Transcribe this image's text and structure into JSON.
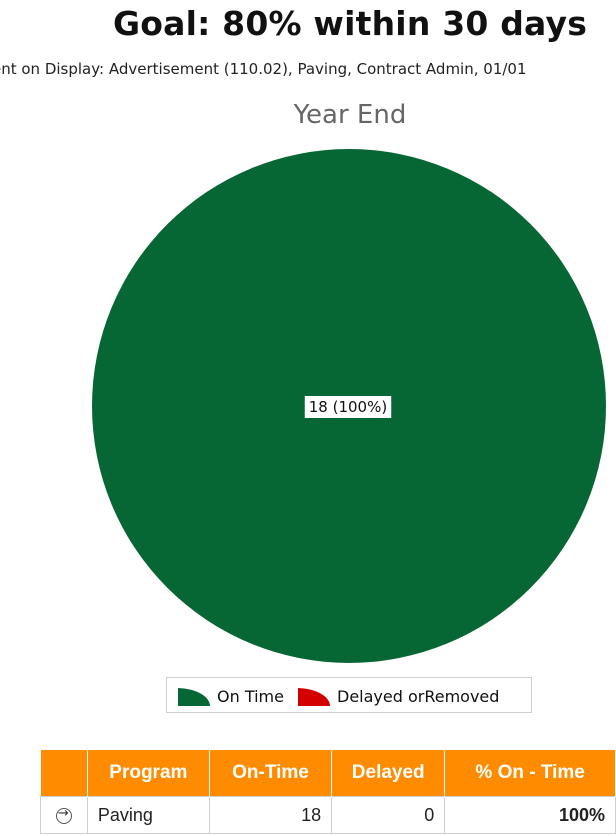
{
  "title": "Goal: 80% within 30 days",
  "subtitle": "ent on Display: Advertisement (110.02), Paving, Contract Admin, 01/01",
  "chart_data": {
    "type": "pie",
    "title": "Year End",
    "slices": [
      {
        "name": "On Time",
        "value": 18,
        "label": "18 (100%)",
        "color": "#076734"
      },
      {
        "name": "Delayed orRemoved",
        "value": 0,
        "label": "",
        "color": "#d40000"
      }
    ],
    "legend_placement": "bottom"
  },
  "legend": {
    "on_time": "On Time",
    "delayed": "Delayed orRemoved"
  },
  "table": {
    "headers": [
      "Program",
      "On-Time",
      "Delayed",
      "% On - Time"
    ],
    "rows": [
      {
        "program": "Paving",
        "on_time": "18",
        "delayed": "0",
        "pct": "100%"
      }
    ]
  }
}
